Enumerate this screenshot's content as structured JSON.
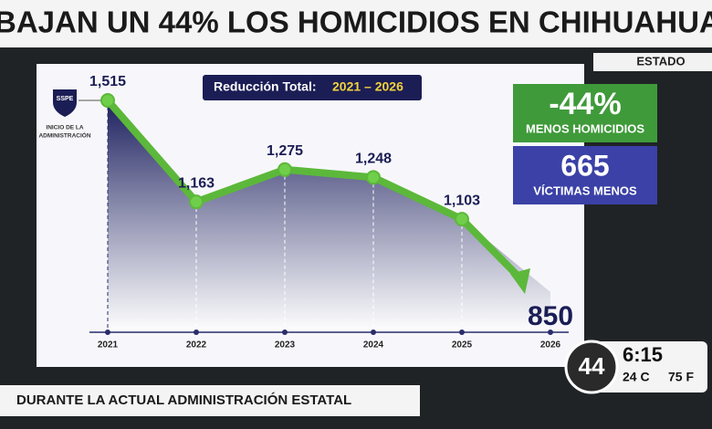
{
  "headline": "BAJAN UN 44% LOS HOMICIDIOS EN CHIHUAHUA",
  "section_tag": "ESTADO",
  "logo": {
    "badge": "SSPE",
    "caption_line1": "INICIO DE LA",
    "caption_line2": "ADMINISTRACIÓN"
  },
  "chart_data": {
    "type": "line",
    "title": "Reducción Total:",
    "title_range": "2021 – 2026",
    "categories": [
      "2021",
      "2022",
      "2023",
      "2024",
      "2025",
      "2026"
    ],
    "values": [
      1515,
      1163,
      1275,
      1248,
      1103,
      850
    ],
    "value_labels": [
      "1,515",
      "1,163",
      "1,275",
      "1,248",
      "1,103",
      "850"
    ],
    "color": "#5cb83a"
  },
  "stats": [
    {
      "big": "-44%",
      "small": "MENOS HOMICIDIOS"
    },
    {
      "big": "665",
      "small": "VÍCTIMAS MENOS"
    }
  ],
  "lower_third": "DURANTE LA ACTUAL ADMINISTRACIÓN ESTATAL",
  "clock": {
    "logo": "44",
    "time": "6:15",
    "temp_c": "24 C",
    "temp_f": "75 F"
  }
}
